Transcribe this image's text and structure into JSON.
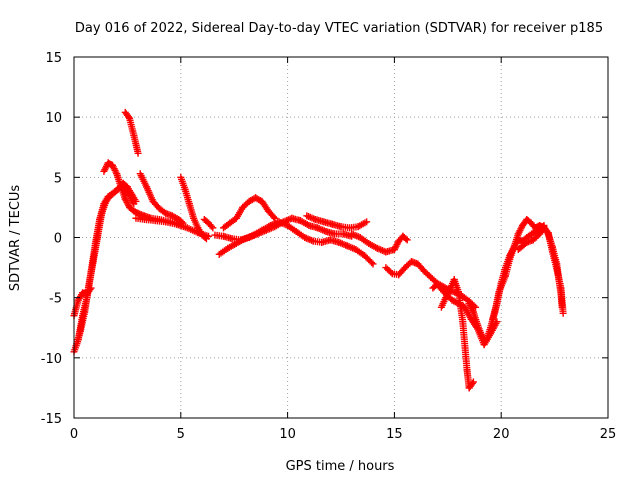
{
  "chart_data": {
    "type": "scatter",
    "title": "Day 016 of 2022, Sidereal Day-to-day VTEC variation (SDTVAR) for receiver p185",
    "xlabel": "GPS time / hours",
    "ylabel": "SDTVAR / TECUs",
    "xlim": [
      0,
      25
    ],
    "ylim": [
      -15,
      15
    ],
    "xticks": [
      0,
      5,
      10,
      15,
      20,
      25
    ],
    "yticks": [
      -15,
      -10,
      -5,
      0,
      5,
      10,
      15
    ],
    "grid": true,
    "marker": "+",
    "series": [
      {
        "name": "SDTVAR",
        "color": "#ff0000",
        "segments": [
          [
            [
              0.0,
              -9.5
            ],
            [
              0.2,
              -8.5
            ],
            [
              0.4,
              -6.5
            ],
            [
              0.6,
              -5.0
            ],
            [
              0.8,
              -2.8
            ],
            [
              1.0,
              -0.5
            ],
            [
              1.2,
              1.5
            ],
            [
              1.4,
              2.8
            ],
            [
              1.6,
              3.4
            ],
            [
              1.8,
              3.6
            ],
            [
              2.0,
              3.9
            ],
            [
              2.2,
              4.2
            ],
            [
              2.4,
              4.0
            ],
            [
              2.6,
              3.5
            ],
            [
              2.8,
              2.8
            ]
          ],
          [
            [
              0.0,
              -6.5
            ],
            [
              0.2,
              -5.2
            ],
            [
              0.4,
              -4.6
            ],
            [
              0.6,
              -4.7
            ],
            [
              0.8,
              -4.2
            ]
          ],
          [
            [
              0.1,
              -9.0
            ],
            [
              0.3,
              -7.8
            ],
            [
              0.5,
              -6.2
            ],
            [
              0.7,
              -4.0
            ],
            [
              0.9,
              -2.0
            ],
            [
              1.1,
              0.0
            ],
            [
              1.3,
              2.0
            ],
            [
              1.5,
              3.0
            ],
            [
              1.7,
              3.5
            ],
            [
              1.9,
              3.8
            ],
            [
              2.1,
              4.1
            ],
            [
              2.3,
              4.5
            ],
            [
              2.5,
              4.2
            ],
            [
              2.7,
              3.6
            ],
            [
              2.9,
              3.0
            ]
          ],
          [
            [
              1.4,
              5.5
            ],
            [
              1.6,
              6.2
            ],
            [
              1.8,
              6.0
            ],
            [
              2.0,
              5.3
            ],
            [
              2.2,
              4.2
            ],
            [
              2.4,
              3.2
            ],
            [
              2.6,
              2.5
            ],
            [
              2.8,
              2.2
            ],
            [
              3.0,
              2.0
            ],
            [
              3.3,
              1.8
            ],
            [
              3.6,
              1.6
            ],
            [
              4.0,
              1.5
            ],
            [
              4.5,
              1.3
            ],
            [
              5.0,
              1.1
            ]
          ],
          [
            [
              2.4,
              10.4
            ],
            [
              2.6,
              9.9
            ],
            [
              2.8,
              8.5
            ],
            [
              3.0,
              7.0
            ]
          ],
          [
            [
              2.9,
              1.6
            ],
            [
              3.3,
              1.5
            ],
            [
              3.8,
              1.4
            ],
            [
              4.3,
              1.3
            ],
            [
              4.8,
              1.1
            ],
            [
              5.3,
              0.8
            ],
            [
              5.8,
              0.4
            ],
            [
              6.3,
              0.1
            ]
          ],
          [
            [
              3.1,
              5.3
            ],
            [
              3.4,
              4.2
            ],
            [
              3.7,
              3.0
            ],
            [
              4.0,
              2.4
            ],
            [
              4.3,
              2.0
            ],
            [
              4.6,
              1.8
            ],
            [
              4.9,
              1.5
            ],
            [
              5.1,
              1.2
            ]
          ],
          [
            [
              5.0,
              5.0
            ],
            [
              5.2,
              4.0
            ],
            [
              5.4,
              2.8
            ],
            [
              5.6,
              1.6
            ],
            [
              5.8,
              0.8
            ],
            [
              6.0,
              0.2
            ],
            [
              6.2,
              -0.1
            ]
          ],
          [
            [
              6.1,
              1.5
            ],
            [
              6.3,
              1.2
            ],
            [
              6.5,
              0.8
            ]
          ],
          [
            [
              7.0,
              0.8
            ],
            [
              7.3,
              1.2
            ],
            [
              7.6,
              1.6
            ],
            [
              7.9,
              2.5
            ],
            [
              8.2,
              3.0
            ],
            [
              8.5,
              3.3
            ],
            [
              8.8,
              3.0
            ],
            [
              9.1,
              2.2
            ],
            [
              9.4,
              1.6
            ]
          ],
          [
            [
              6.6,
              0.2
            ],
            [
              7.0,
              0.1
            ],
            [
              7.4,
              -0.1
            ],
            [
              7.8,
              -0.2
            ],
            [
              8.2,
              0.0
            ],
            [
              8.6,
              0.3
            ],
            [
              9.0,
              0.6
            ],
            [
              9.4,
              0.9
            ],
            [
              9.8,
              1.3
            ],
            [
              10.2,
              1.6
            ],
            [
              10.6,
              1.4
            ],
            [
              11.0,
              1.0
            ],
            [
              11.4,
              0.8
            ],
            [
              11.8,
              0.5
            ],
            [
              12.2,
              0.3
            ],
            [
              12.6,
              0.3
            ],
            [
              13.0,
              0.1
            ]
          ],
          [
            [
              6.8,
              -1.4
            ],
            [
              7.2,
              -0.9
            ],
            [
              7.6,
              -0.5
            ],
            [
              8.0,
              -0.1
            ],
            [
              8.4,
              0.2
            ],
            [
              8.8,
              0.6
            ],
            [
              9.2,
              1.0
            ],
            [
              9.6,
              1.3
            ],
            [
              10.0,
              1.0
            ],
            [
              10.4,
              0.5
            ],
            [
              10.8,
              0.0
            ],
            [
              11.2,
              -0.3
            ],
            [
              11.6,
              -0.4
            ],
            [
              12.0,
              -0.2
            ],
            [
              12.4,
              -0.4
            ],
            [
              12.8,
              -0.7
            ],
            [
              13.2,
              -1.0
            ],
            [
              13.6,
              -1.5
            ],
            [
              14.0,
              -2.2
            ]
          ],
          [
            [
              10.9,
              1.8
            ],
            [
              11.3,
              1.5
            ],
            [
              11.7,
              1.3
            ],
            [
              12.1,
              1.1
            ],
            [
              12.5,
              0.9
            ],
            [
              12.9,
              0.8
            ],
            [
              13.3,
              0.9
            ],
            [
              13.7,
              1.3
            ]
          ],
          [
            [
              13.0,
              0.3
            ],
            [
              13.4,
              0.0
            ],
            [
              13.8,
              -0.5
            ],
            [
              14.2,
              -0.9
            ],
            [
              14.6,
              -1.2
            ],
            [
              15.0,
              -1.0
            ],
            [
              15.2,
              -0.3
            ],
            [
              15.4,
              0.1
            ],
            [
              15.6,
              -0.2
            ]
          ],
          [
            [
              14.6,
              -2.5
            ],
            [
              14.9,
              -3.0
            ],
            [
              15.2,
              -3.1
            ],
            [
              15.5,
              -2.5
            ],
            [
              15.8,
              -2.0
            ],
            [
              16.1,
              -2.2
            ],
            [
              16.4,
              -2.8
            ],
            [
              16.7,
              -3.3
            ],
            [
              17.0,
              -3.8
            ],
            [
              17.3,
              -4.1
            ],
            [
              17.6,
              -4.4
            ],
            [
              17.9,
              -4.6
            ],
            [
              18.2,
              -4.9
            ],
            [
              18.5,
              -5.3
            ],
            [
              18.8,
              -5.8
            ]
          ],
          [
            [
              17.2,
              -5.8
            ],
            [
              17.4,
              -5.0
            ],
            [
              17.6,
              -4.3
            ],
            [
              17.8,
              -3.5
            ],
            [
              18.0,
              -4.5
            ],
            [
              18.2,
              -7.0
            ],
            [
              18.4,
              -11.0
            ],
            [
              18.5,
              -12.5
            ],
            [
              18.7,
              -12.0
            ]
          ],
          [
            [
              16.8,
              -4.2
            ],
            [
              17.0,
              -3.9
            ],
            [
              17.3,
              -4.5
            ],
            [
              17.7,
              -5.2
            ],
            [
              18.0,
              -5.5
            ],
            [
              18.3,
              -5.8
            ],
            [
              18.6,
              -6.8
            ],
            [
              18.9,
              -7.6
            ],
            [
              19.2,
              -8.9
            ],
            [
              19.5,
              -8.0
            ],
            [
              19.8,
              -7.0
            ]
          ],
          [
            [
              18.5,
              -5.5
            ],
            [
              18.7,
              -6.2
            ],
            [
              18.9,
              -7.3
            ],
            [
              19.1,
              -8.2
            ],
            [
              19.3,
              -8.6
            ],
            [
              19.5,
              -7.5
            ],
            [
              19.7,
              -6.2
            ],
            [
              19.9,
              -4.5
            ],
            [
              20.2,
              -3.2
            ],
            [
              20.4,
              -1.8
            ],
            [
              20.6,
              -0.8
            ],
            [
              20.8,
              -0.2
            ],
            [
              21.0,
              -0.3
            ],
            [
              21.2,
              0.0
            ],
            [
              21.5,
              0.4
            ],
            [
              21.8,
              0.7
            ],
            [
              22.0,
              1.0
            ]
          ],
          [
            [
              19.6,
              -6.8
            ],
            [
              19.8,
              -5.5
            ],
            [
              20.0,
              -3.8
            ],
            [
              20.2,
              -2.5
            ],
            [
              20.4,
              -1.5
            ],
            [
              20.6,
              -0.8
            ],
            [
              20.8,
              0.3
            ],
            [
              21.0,
              1.0
            ],
            [
              21.2,
              1.5
            ],
            [
              21.4,
              1.2
            ],
            [
              21.6,
              0.8
            ],
            [
              21.8,
              1.0
            ],
            [
              22.0,
              0.8
            ]
          ],
          [
            [
              20.8,
              -1.0
            ],
            [
              21.0,
              -0.7
            ],
            [
              21.2,
              -0.4
            ],
            [
              21.5,
              -0.2
            ],
            [
              21.8,
              0.3
            ],
            [
              22.0,
              0.8
            ],
            [
              22.2,
              0.4
            ],
            [
              22.4,
              -1.2
            ],
            [
              22.6,
              -2.6
            ],
            [
              22.8,
              -4.2
            ],
            [
              22.9,
              -6.3
            ]
          ],
          [
            [
              21.6,
              0.3
            ],
            [
              21.8,
              0.5
            ],
            [
              22.0,
              0.9
            ],
            [
              22.2,
              0.3
            ],
            [
              22.4,
              -0.8
            ],
            [
              22.6,
              -2.2
            ],
            [
              22.7,
              -3.5
            ],
            [
              22.8,
              -4.7
            ],
            [
              22.85,
              -5.8
            ]
          ]
        ]
      }
    ]
  }
}
